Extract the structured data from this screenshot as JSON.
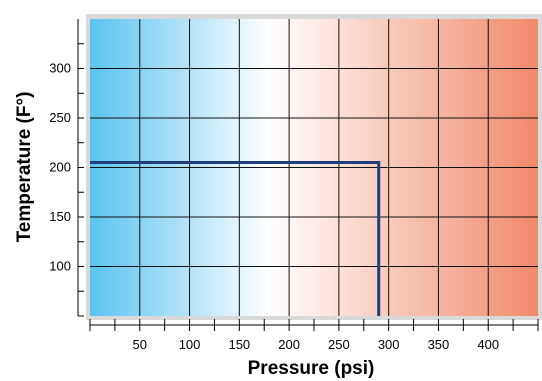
{
  "chart_data": {
    "type": "line",
    "title": "",
    "xlabel": "Pressure (psi)",
    "ylabel": "Temperature (F°)",
    "xlim": [
      0,
      450
    ],
    "ylim": [
      50,
      350
    ],
    "x_ticks": [
      50,
      100,
      150,
      200,
      250,
      300,
      350,
      400
    ],
    "y_ticks": [
      100,
      150,
      200,
      250,
      300
    ],
    "grid": true,
    "background_gradient": [
      "#5bc3f0",
      "#ffffff",
      "#f08a6a"
    ],
    "series": [
      {
        "x": [
          0,
          290,
          290
        ],
        "y": [
          205,
          205,
          50
        ],
        "color": "#1f3f7a"
      }
    ]
  }
}
